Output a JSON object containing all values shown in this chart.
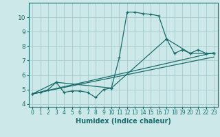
{
  "xlabel": "Humidex (Indice chaleur)",
  "bg_color": "#cce8e8",
  "grid_color": "#aacfcf",
  "line_color": "#1a6b6b",
  "xlim": [
    -0.5,
    23.5
  ],
  "ylim": [
    3.8,
    11.0
  ],
  "xticks": [
    0,
    1,
    2,
    3,
    4,
    5,
    6,
    7,
    8,
    9,
    10,
    11,
    12,
    13,
    14,
    15,
    16,
    17,
    18,
    19,
    20,
    21,
    22,
    23
  ],
  "yticks": [
    4,
    5,
    6,
    7,
    8,
    9,
    10
  ],
  "series1_x": [
    0,
    1,
    2,
    3,
    4,
    5,
    6,
    7,
    8,
    9,
    10,
    11,
    12,
    13,
    14,
    15,
    16,
    17,
    18,
    19,
    20,
    21,
    22,
    23
  ],
  "series1_y": [
    4.7,
    4.8,
    5.0,
    5.5,
    4.8,
    4.9,
    4.9,
    4.8,
    4.45,
    5.0,
    5.1,
    7.2,
    10.35,
    10.35,
    10.25,
    10.2,
    10.1,
    8.5,
    7.5,
    7.75,
    7.5,
    7.75,
    7.5,
    7.5
  ],
  "series2_x": [
    0,
    3,
    10,
    17,
    20,
    23
  ],
  "series2_y": [
    4.7,
    5.5,
    5.1,
    8.5,
    7.5,
    7.5
  ],
  "series3_x": [
    0,
    23
  ],
  "series3_y": [
    4.7,
    7.55
  ],
  "series4_x": [
    0,
    23
  ],
  "series4_y": [
    4.7,
    7.25
  ]
}
